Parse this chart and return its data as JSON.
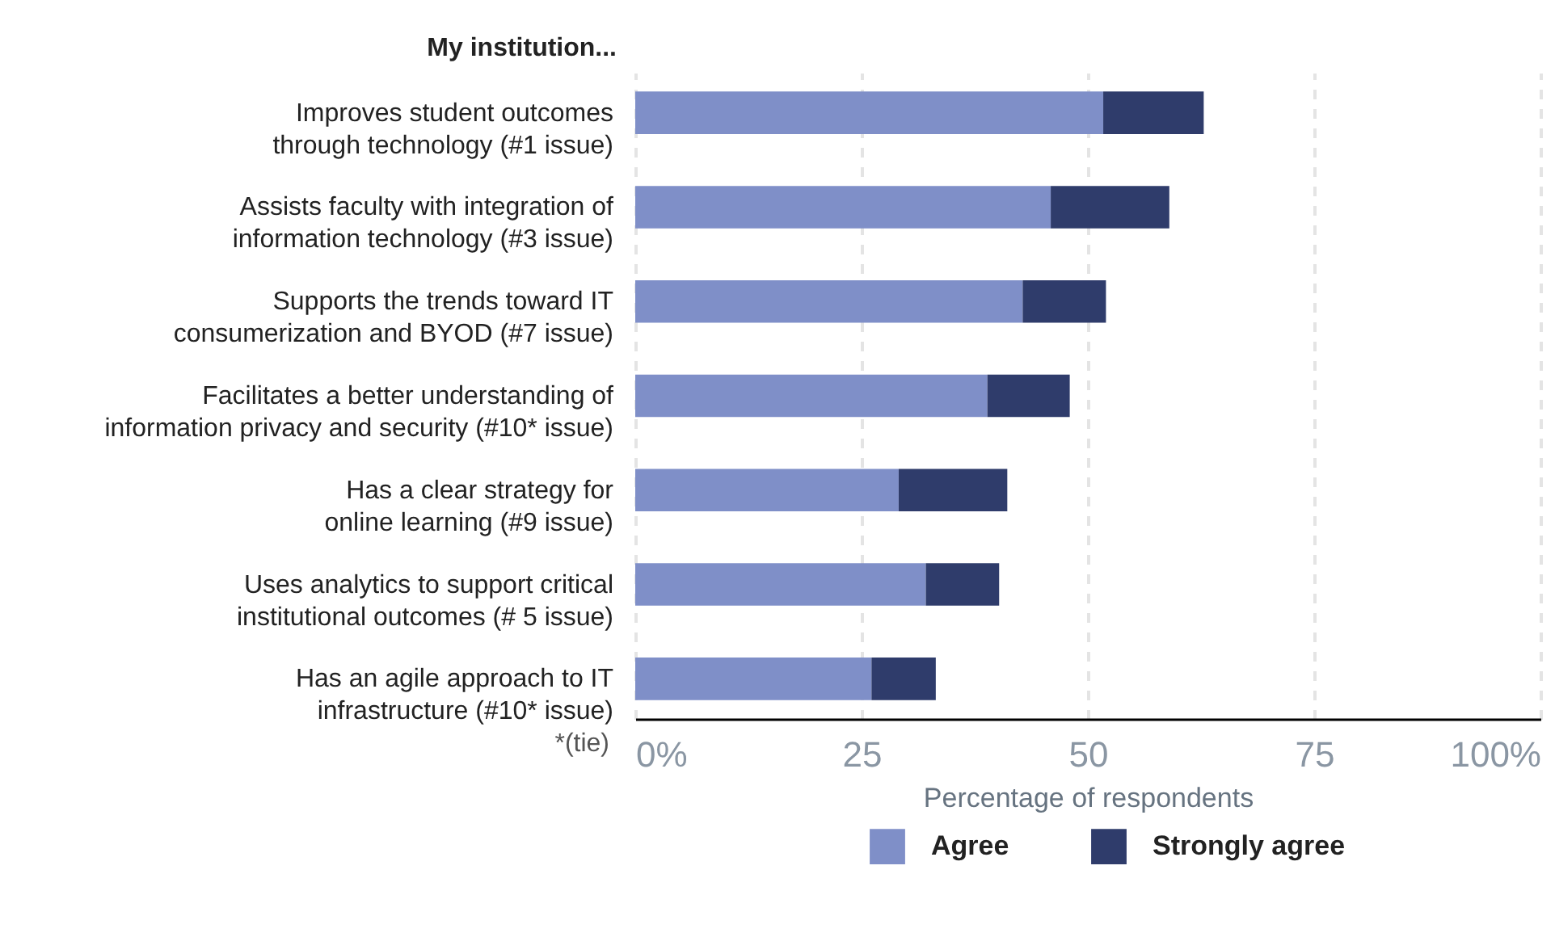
{
  "chart_data": {
    "type": "bar",
    "orientation": "horizontal",
    "stacked": true,
    "ylabel": "My institution...",
    "xlabel": "Percentage of respondents",
    "categories": [
      "Improves student outcomes through technology (#1 issue)",
      "Assists faculty with integration of information technology (#3 issue)",
      "Supports the trends toward IT consumerization and BYOD (#7 issue)",
      "Facilitates a better understanding of information privacy and security (#10* issue)",
      "Has a clear strategy for online learning (#9 issue)",
      "Uses analytics to support critical institutional outcomes (# 5 issue)",
      "Has an agile approach to IT infrastructure (#10* issue)"
    ],
    "series": [
      {
        "name": "Agree",
        "color": "#7f8fc8",
        "values": [
          51.7,
          45.9,
          42.8,
          38.9,
          29.1,
          32.1,
          26.1
        ]
      },
      {
        "name": "Strongly agree",
        "color": "#2f3c6b",
        "values": [
          11.1,
          13.1,
          9.2,
          9.1,
          12.0,
          8.1,
          7.1
        ]
      }
    ],
    "xlim": [
      0,
      100
    ],
    "xticks": [
      {
        "value": 0,
        "label": "0%"
      },
      25,
      50,
      75,
      {
        "value": 100,
        "label": "100%"
      }
    ],
    "grid": "x",
    "legend": "bottom",
    "annotations": [
      "*(tie)"
    ]
  }
}
